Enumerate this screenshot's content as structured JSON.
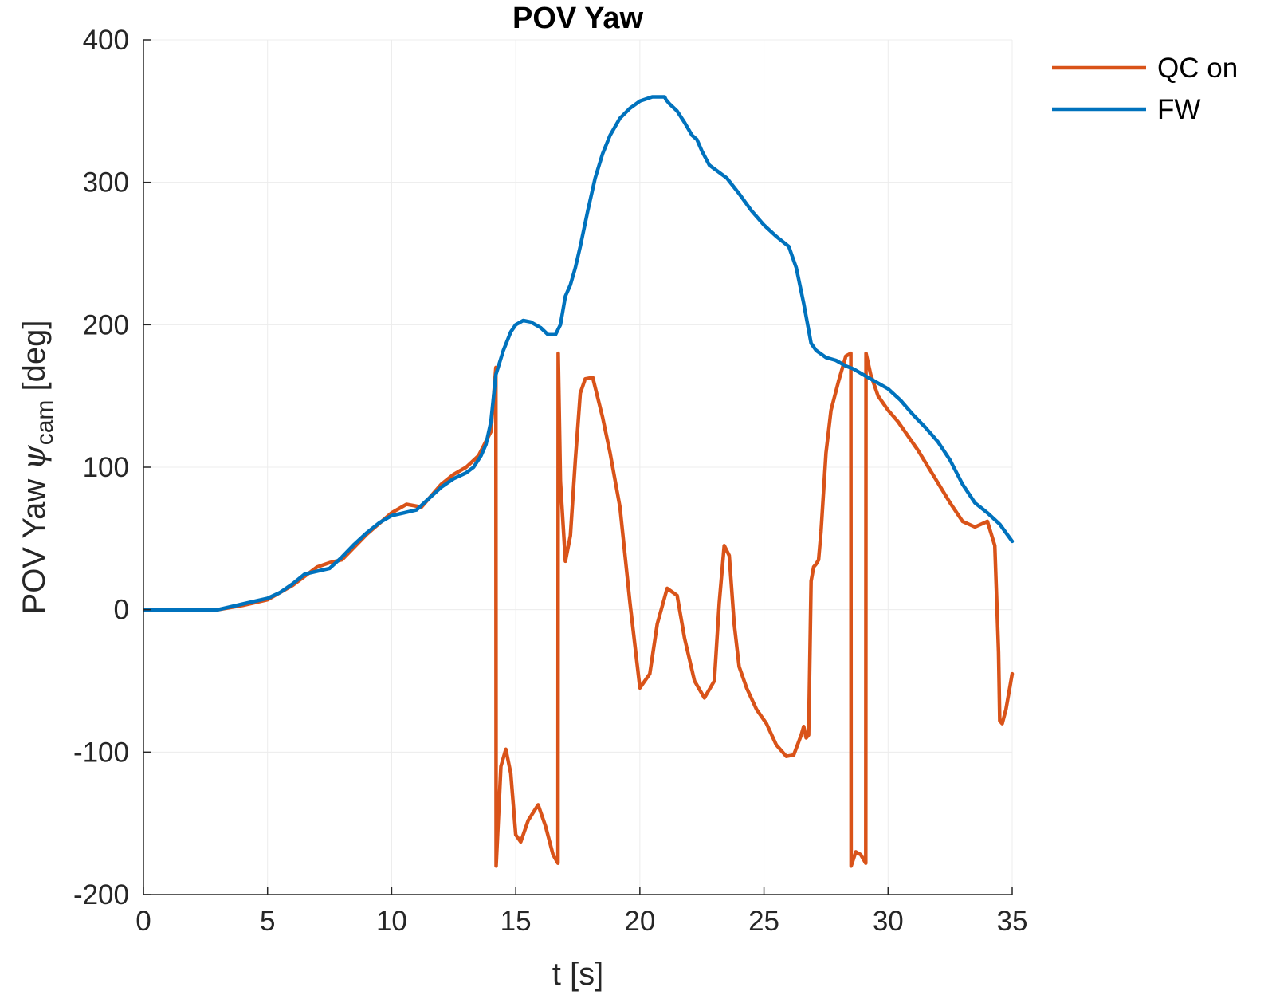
{
  "chart_data": {
    "type": "line",
    "title": "POV Yaw",
    "xlabel": "t [s]",
    "ylabel": {
      "main": "POV Yaw ",
      "symbol": "ψ",
      "subscript": "cam",
      "unit": " [deg]"
    },
    "xlim": [
      0,
      35
    ],
    "ylim": [
      -200,
      400
    ],
    "xticks": [
      0,
      5,
      10,
      15,
      20,
      25,
      30,
      35
    ],
    "yticks": [
      -200,
      -100,
      0,
      100,
      200,
      300,
      400
    ],
    "xtick_labels": [
      "0",
      "5",
      "10",
      "15",
      "20",
      "25",
      "30",
      "35"
    ],
    "ytick_labels": [
      "-200",
      "-100",
      "0",
      "100",
      "200",
      "300",
      "400"
    ],
    "grid": true,
    "legend_position": "top-right",
    "series": [
      {
        "name": "QC on",
        "color": "#D95319",
        "x": [
          0,
          3.0,
          4.0,
          5.0,
          6.0,
          7.0,
          7.5,
          8.0,
          9.0,
          10.0,
          10.6,
          11.2,
          12.0,
          12.5,
          13.0,
          13.5,
          14.0,
          14.2,
          14.21,
          14.4,
          14.6,
          14.8,
          15.0,
          15.2,
          15.5,
          15.9,
          16.2,
          16.5,
          16.7,
          16.71,
          16.8,
          17.0,
          17.2,
          17.4,
          17.6,
          17.8,
          18.1,
          18.5,
          18.8,
          19.2,
          19.6,
          20.0,
          20.4,
          20.7,
          21.1,
          21.5,
          21.8,
          22.2,
          22.6,
          23.0,
          23.2,
          23.4,
          23.6,
          23.8,
          24.0,
          24.3,
          24.7,
          25.1,
          25.5,
          25.9,
          26.2,
          26.5,
          26.6,
          26.7,
          26.8,
          26.9,
          27.0,
          27.1,
          27.2,
          27.3,
          27.5,
          27.7,
          28.0,
          28.3,
          28.5,
          28.51,
          28.7,
          28.9,
          29.1,
          29.11,
          29.3,
          29.6,
          30.0,
          30.4,
          30.8,
          31.2,
          31.8,
          32.5,
          33.0,
          33.5,
          34.0,
          34.3,
          34.45,
          34.5,
          34.6,
          34.75,
          35.0
        ],
        "y": [
          0,
          0,
          3,
          7,
          17,
          30,
          33,
          35,
          53,
          68,
          74,
          72,
          88,
          95,
          100,
          108,
          125,
          170,
          -180,
          -110,
          -98,
          -115,
          -158,
          -163,
          -148,
          -137,
          -152,
          -172,
          -178,
          180,
          90,
          34,
          52,
          105,
          152,
          162,
          163,
          135,
          110,
          72,
          5,
          -55,
          -45,
          -10,
          15,
          10,
          -20,
          -50,
          -62,
          -50,
          5,
          45,
          38,
          -10,
          -40,
          -55,
          -70,
          -80,
          -95,
          -103,
          -102,
          -88,
          -82,
          -90,
          -88,
          20,
          30,
          32,
          35,
          55,
          110,
          140,
          160,
          178,
          180,
          -180,
          -170,
          -172,
          -178,
          180,
          165,
          150,
          140,
          132,
          122,
          112,
          95,
          75,
          62,
          58,
          62,
          45,
          -30,
          -78,
          -80,
          -70,
          -45
        ]
      },
      {
        "name": "FW",
        "color": "#0072BD",
        "x": [
          0,
          3.0,
          4.0,
          5.0,
          5.5,
          6.0,
          6.5,
          7.0,
          7.5,
          8.0,
          8.5,
          9.0,
          9.5,
          10.0,
          10.5,
          11.0,
          11.5,
          12.0,
          12.5,
          13.0,
          13.3,
          13.6,
          13.8,
          14.0,
          14.2,
          14.5,
          14.8,
          15.0,
          15.3,
          15.6,
          16.0,
          16.3,
          16.6,
          16.8,
          17.0,
          17.2,
          17.4,
          17.6,
          17.9,
          18.2,
          18.5,
          18.8,
          19.2,
          19.6,
          20.0,
          20.5,
          21.0,
          21.05,
          21.2,
          21.5,
          21.8,
          22.1,
          22.3,
          22.5,
          22.8,
          23.5,
          24.0,
          24.5,
          25.0,
          25.5,
          26.0,
          26.3,
          26.6,
          26.9,
          27.1,
          27.5,
          27.9,
          28.1,
          28.3,
          28.6,
          29.0,
          29.5,
          30.0,
          30.5,
          31.0,
          31.5,
          32.0,
          32.5,
          33.0,
          33.5,
          34.0,
          34.5,
          35.0
        ],
        "y": [
          0,
          0,
          4,
          8,
          12,
          18,
          25,
          27,
          29,
          37,
          46,
          54,
          61,
          66,
          68,
          70,
          78,
          86,
          92,
          96,
          100,
          108,
          116,
          132,
          165,
          182,
          195,
          200,
          203,
          202,
          198,
          193,
          193,
          200,
          220,
          228,
          240,
          255,
          280,
          303,
          320,
          333,
          345,
          352,
          357,
          360,
          360,
          358,
          355,
          350,
          342,
          333,
          330,
          322,
          312,
          303,
          292,
          280,
          270,
          262,
          255,
          240,
          215,
          187,
          182,
          177,
          175,
          173,
          171,
          169,
          165,
          160,
          155,
          147,
          137,
          128,
          118,
          105,
          88,
          75,
          68,
          60,
          48
        ]
      }
    ]
  }
}
